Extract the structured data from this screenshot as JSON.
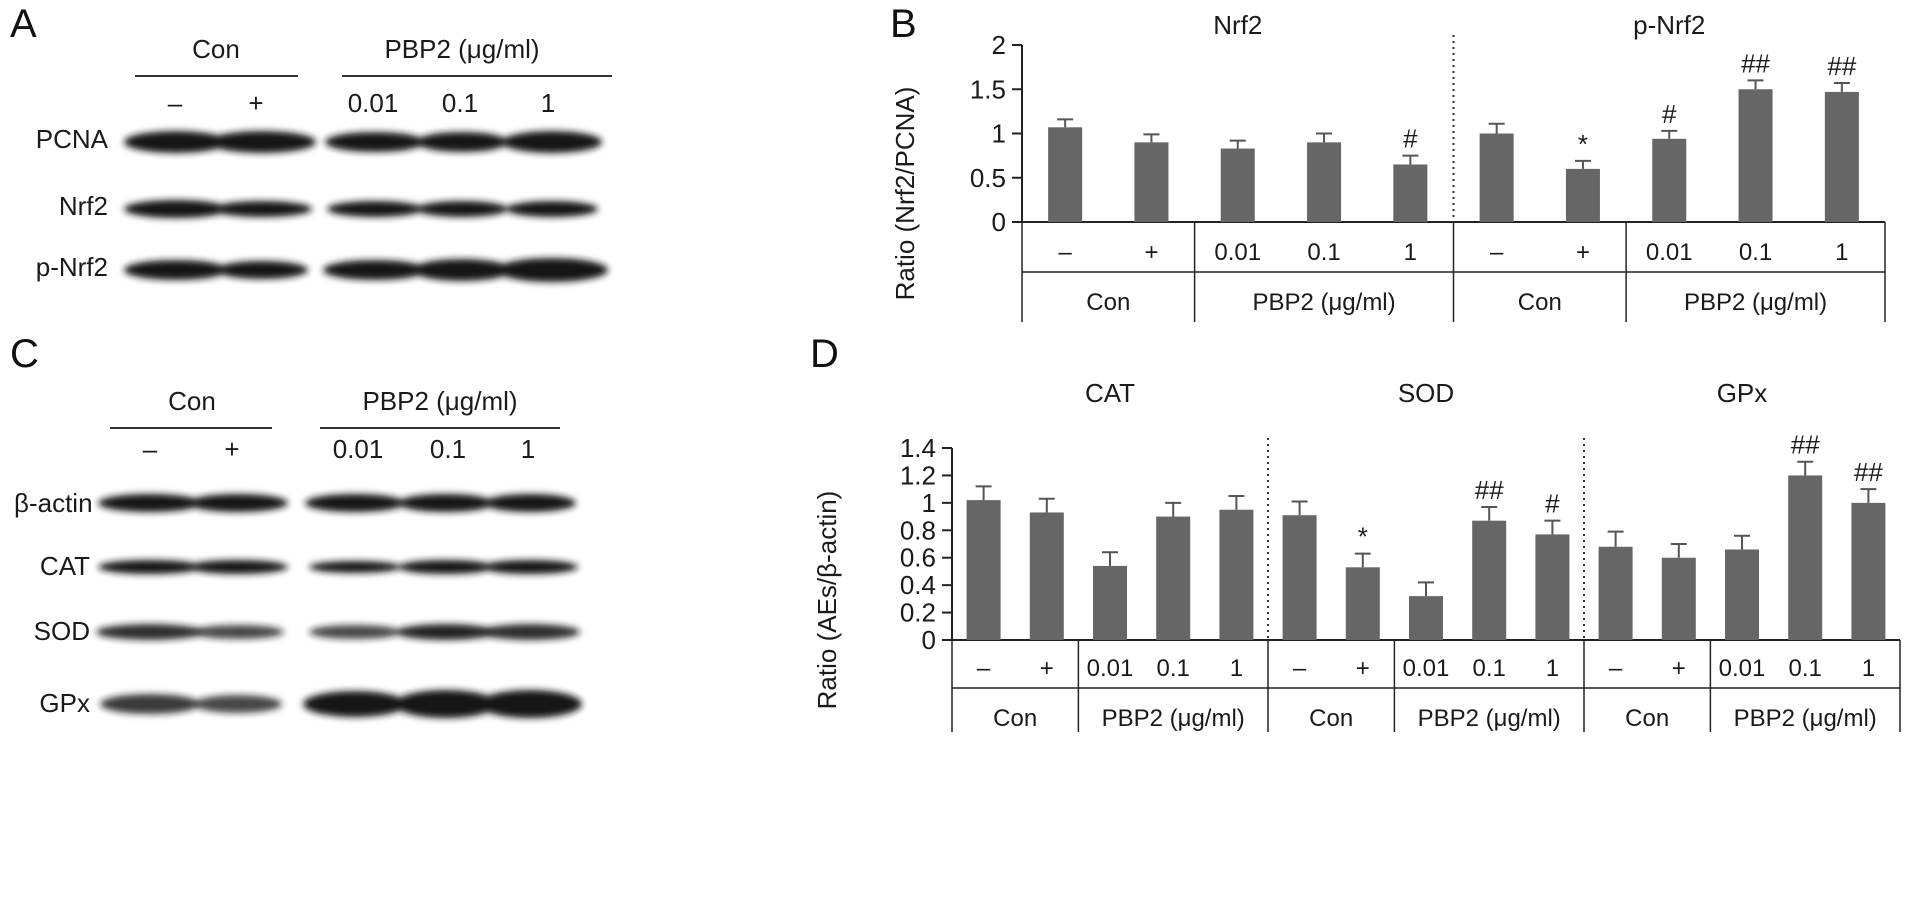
{
  "panels": {
    "A": {
      "letter": "A",
      "group_con": "Con",
      "group_pbp2": "PBP2 (μg/ml)",
      "lanes": [
        "–",
        "+",
        "0.01",
        "0.1",
        "1"
      ],
      "rows": [
        "PCNA",
        "Nrf2",
        "p-Nrf2"
      ]
    },
    "C": {
      "letter": "C",
      "group_con": "Con",
      "group_pbp2": "PBP2 (μg/ml)",
      "lanes": [
        "–",
        "+",
        "0.01",
        "0.1",
        "1"
      ],
      "rows": [
        "β-actin",
        "CAT",
        "SOD",
        "GPx"
      ]
    },
    "B": {
      "letter": "B"
    },
    "D": {
      "letter": "D"
    }
  },
  "chart_data": [
    {
      "type": "bar",
      "panel": "B",
      "ylabel": "Ratio (Nrf2/PCNA)",
      "ylim": [
        0,
        2
      ],
      "yticks": [
        "0",
        "0.5",
        "1",
        "1.5",
        "2"
      ],
      "color": "#666666",
      "lane_labels": [
        "–",
        "+",
        "0.01",
        "0.1",
        "1"
      ],
      "group_labels": [
        "Con",
        "PBP2 (μg/ml)"
      ],
      "groups": [
        {
          "title": "Nrf2",
          "values": [
            1.07,
            0.9,
            0.83,
            0.9,
            0.65
          ],
          "errors": [
            0.09,
            0.09,
            0.09,
            0.1,
            0.1
          ],
          "annotations": [
            "",
            "",
            "",
            "",
            "#"
          ]
        },
        {
          "title": "p-Nrf2",
          "values": [
            1.0,
            0.6,
            0.94,
            1.5,
            1.47
          ],
          "errors": [
            0.11,
            0.09,
            0.09,
            0.1,
            0.1
          ],
          "annotations": [
            "",
            "*",
            "#",
            "##",
            "##"
          ]
        }
      ]
    },
    {
      "type": "bar",
      "panel": "D",
      "ylabel": "Ratio (AEs/β-actin)",
      "ylim": [
        0,
        1.4
      ],
      "yticks": [
        "0",
        "0.2",
        "0.4",
        "0.6",
        "0.8",
        "1",
        "1.2",
        "1.4"
      ],
      "color": "#666666",
      "lane_labels": [
        "–",
        "+",
        "0.01",
        "0.1",
        "1"
      ],
      "group_labels": [
        "Con",
        "PBP2 (μg/ml)"
      ],
      "groups": [
        {
          "title": "CAT",
          "values": [
            1.02,
            0.93,
            0.54,
            0.9,
            0.95
          ],
          "errors": [
            0.1,
            0.1,
            0.1,
            0.1,
            0.1
          ],
          "annotations": [
            "",
            "",
            "",
            "",
            ""
          ]
        },
        {
          "title": "SOD",
          "values": [
            0.91,
            0.53,
            0.32,
            0.87,
            0.77
          ],
          "errors": [
            0.1,
            0.1,
            0.1,
            0.1,
            0.1
          ],
          "annotations": [
            "",
            "*",
            "",
            "##",
            "#"
          ]
        },
        {
          "title": "GPx",
          "values": [
            0.68,
            0.6,
            0.66,
            1.2,
            1.0
          ],
          "errors": [
            0.11,
            0.1,
            0.1,
            0.1,
            0.1
          ],
          "annotations": [
            "",
            "",
            "",
            "##",
            "##"
          ]
        }
      ]
    }
  ]
}
